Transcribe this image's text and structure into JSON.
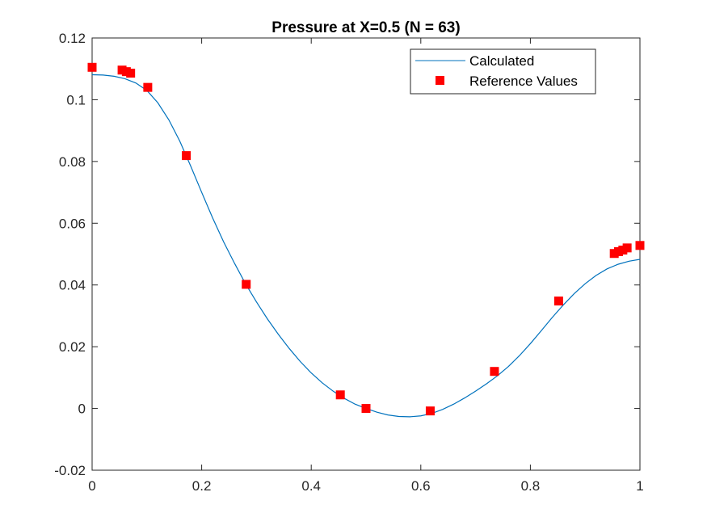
{
  "chart_data": {
    "type": "line",
    "title": "Pressure at X=0.5 (N = 63)",
    "xlabel": "",
    "ylabel": "",
    "xlim": [
      0,
      1
    ],
    "ylim": [
      -0.02,
      0.12
    ],
    "x_ticks": [
      0,
      0.2,
      0.4,
      0.6,
      0.8,
      1
    ],
    "x_tick_labels": [
      "0",
      "0.2",
      "0.4",
      "0.6",
      "0.8",
      "1"
    ],
    "y_ticks": [
      -0.02,
      0,
      0.02,
      0.04,
      0.06,
      0.08,
      0.1,
      0.12
    ],
    "y_tick_labels": [
      "-0.02",
      "0",
      "0.02",
      "0.04",
      "0.06",
      "0.08",
      "0.1",
      "0.12"
    ],
    "grid": false,
    "legend_placement": "top-right",
    "series": [
      {
        "name": "Calculated",
        "kind": "line",
        "color": "#0072BD",
        "x": [
          0,
          0.02,
          0.04,
          0.06,
          0.08,
          0.1,
          0.12,
          0.14,
          0.16,
          0.18,
          0.2,
          0.22,
          0.24,
          0.26,
          0.28,
          0.3,
          0.32,
          0.34,
          0.36,
          0.38,
          0.4,
          0.42,
          0.44,
          0.46,
          0.48,
          0.5,
          0.52,
          0.54,
          0.56,
          0.58,
          0.6,
          0.62,
          0.64,
          0.66,
          0.68,
          0.7,
          0.72,
          0.74,
          0.76,
          0.78,
          0.8,
          0.82,
          0.84,
          0.86,
          0.88,
          0.9,
          0.92,
          0.94,
          0.96,
          0.98,
          1.0
        ],
        "y": [
          0.1081,
          0.108,
          0.1076,
          0.1068,
          0.1054,
          0.103,
          0.099,
          0.0935,
          0.0866,
          0.0785,
          0.07,
          0.0617,
          0.054,
          0.047,
          0.0404,
          0.0345,
          0.029,
          0.024,
          0.0194,
          0.0152,
          0.0115,
          0.0083,
          0.0056,
          0.0033,
          0.0014,
          0.0,
          -0.0012,
          -0.0021,
          -0.0026,
          -0.0027,
          -0.0024,
          -0.0016,
          -0.0003,
          0.0014,
          0.0034,
          0.0056,
          0.008,
          0.0106,
          0.0136,
          0.0171,
          0.021,
          0.0252,
          0.0295,
          0.0335,
          0.0372,
          0.0404,
          0.0431,
          0.0452,
          0.0467,
          0.0477,
          0.0483
        ]
      },
      {
        "name": "Reference Values",
        "kind": "marker",
        "marker": "square",
        "color": "#FF0000",
        "x": [
          0,
          0.0547,
          0.0625,
          0.0703,
          0.1016,
          0.1719,
          0.2813,
          0.4531,
          0.5,
          0.6172,
          0.7344,
          0.8516,
          0.9531,
          0.9609,
          0.9688,
          0.9766,
          1.0
        ],
        "y": [
          0.1105,
          0.1096,
          0.1091,
          0.1086,
          0.104,
          0.0819,
          0.0402,
          0.0044,
          0.0,
          -0.0008,
          0.012,
          0.0348,
          0.0502,
          0.0508,
          0.0513,
          0.052,
          0.0528
        ]
      }
    ]
  }
}
